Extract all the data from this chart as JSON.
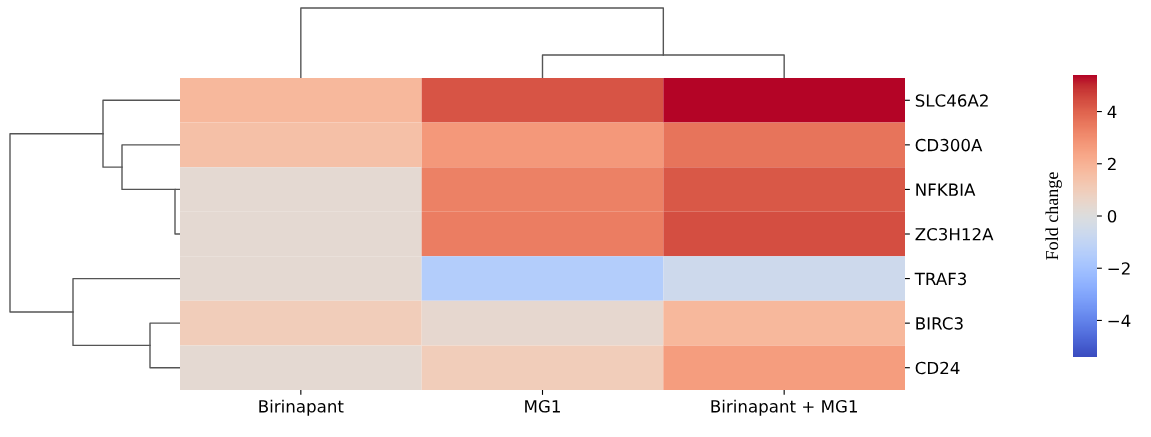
{
  "chart_data": {
    "type": "heatmap",
    "categories": [
      "Birinapant",
      "MG1",
      "Birinapant + MG1"
    ],
    "y_categories": [
      "SLC46A2",
      "CD300A",
      "NFKBIA",
      "ZC3H12A",
      "TRAF3",
      "BIRC3",
      "CD24"
    ],
    "cells": [
      [
        1.8,
        4.3,
        5.4
      ],
      [
        1.5,
        2.7,
        3.6
      ],
      [
        0.3,
        3.3,
        4.2
      ],
      [
        0.3,
        3.4,
        4.4
      ],
      [
        0.3,
        -1.5,
        -0.6
      ],
      [
        1.0,
        0.4,
        1.8
      ],
      [
        0.3,
        1.0,
        2.6
      ]
    ],
    "clim": [
      -5.4,
      5.4
    ],
    "cticks": [
      {
        "value": -4,
        "label": "−4"
      },
      {
        "value": -2,
        "label": "−2"
      },
      0,
      2,
      4
    ],
    "clabel": "Fold change"
  }
}
